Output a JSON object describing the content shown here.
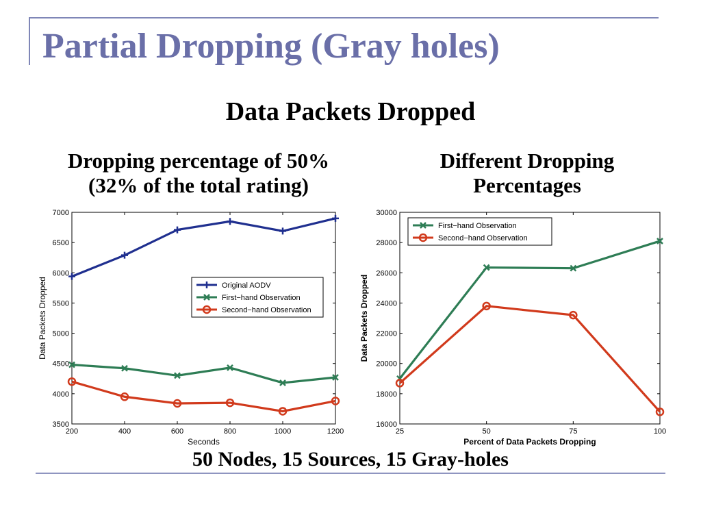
{
  "slide": {
    "title": "Partial Dropping (Gray holes)",
    "subtitle": "Data Packets Dropped",
    "chart1_heading": [
      "Dropping percentage of  50%",
      "(32% of  the total rating)"
    ],
    "chart2_heading": [
      "Different Dropping",
      "Percentages"
    ],
    "footer": "50 Nodes, 15 Sources, 15 Gray-holes"
  },
  "colors": {
    "accent": "#6a6fa8",
    "original_aodv": "#1f2f8f",
    "first_hand": "#2e7d55",
    "second_hand": "#d13a1c"
  },
  "chart_data": [
    {
      "type": "line",
      "xlabel": "Seconds",
      "ylabel": "Data Packets Dropped",
      "xlim": [
        200,
        1200
      ],
      "ylim": [
        3500,
        7000
      ],
      "xticks": [
        200,
        400,
        600,
        800,
        1000,
        1200
      ],
      "yticks": [
        3500,
        4000,
        4500,
        5000,
        5500,
        6000,
        6500,
        7000
      ],
      "legend_position": "center-right",
      "grid": false,
      "x": [
        200,
        400,
        600,
        800,
        1000,
        1200
      ],
      "series": [
        {
          "name": "Original AODV",
          "marker": "plus",
          "color": "#1f2f8f",
          "values": [
            5940,
            6290,
            6710,
            6850,
            6690,
            6900
          ]
        },
        {
          "name": "First−hand Observation",
          "marker": "x",
          "color": "#2e7d55",
          "values": [
            4480,
            4420,
            4300,
            4430,
            4180,
            4270
          ]
        },
        {
          "name": "Second−hand Observation",
          "marker": "circle",
          "color": "#d13a1c",
          "values": [
            4200,
            3950,
            3840,
            3850,
            3710,
            3880
          ]
        }
      ]
    },
    {
      "type": "line",
      "xlabel": "Percent of Data Packets Dropping",
      "ylabel": "Data Packets Dropped",
      "xlim": [
        25,
        100
      ],
      "ylim": [
        16000,
        30000
      ],
      "xticks": [
        25,
        50,
        75,
        100
      ],
      "yticks": [
        16000,
        18000,
        20000,
        22000,
        24000,
        26000,
        28000,
        30000
      ],
      "legend_position": "top-left",
      "grid": false,
      "x": [
        25,
        50,
        75,
        100
      ],
      "series": [
        {
          "name": "First−hand Observation",
          "marker": "x",
          "color": "#2e7d55",
          "values": [
            19000,
            26350,
            26300,
            28100
          ]
        },
        {
          "name": "Second−hand Observation",
          "marker": "circle",
          "color": "#d13a1c",
          "values": [
            18700,
            23800,
            23200,
            16800
          ]
        }
      ]
    }
  ]
}
